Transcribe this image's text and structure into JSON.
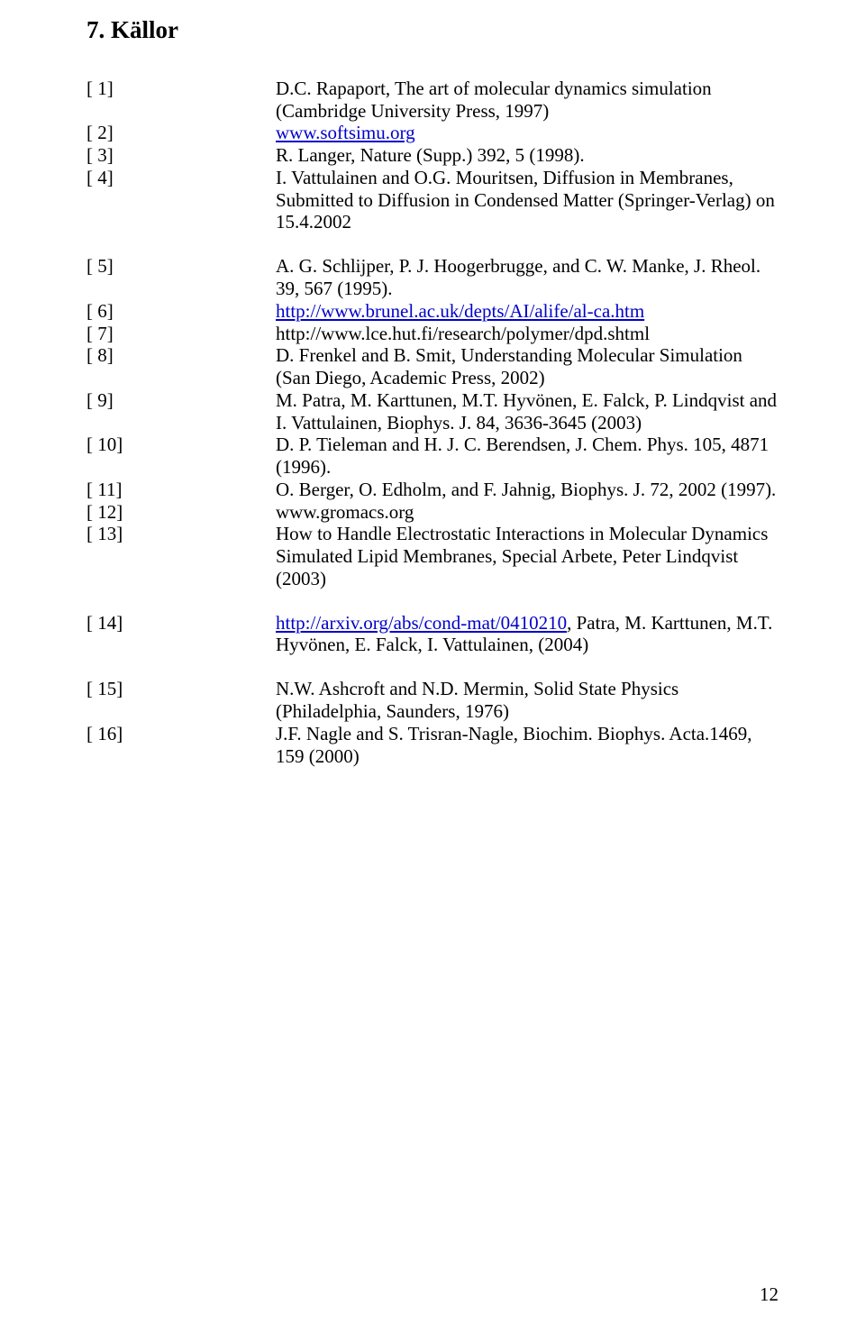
{
  "heading": "7. Källor",
  "page_number": "12",
  "link_color": "#0000cc",
  "refs": [
    {
      "key": "[ 1]",
      "parts": [
        {
          "text": "D.C. Rapaport, The art of molecular dynamics simulation (Cambridge University Press, 1997)"
        }
      ]
    },
    {
      "key": "[ 2]",
      "parts": [
        {
          "text": "www.softsimu.org",
          "link": true
        }
      ]
    },
    {
      "key": "[ 3]",
      "parts": [
        {
          "text": "R. Langer, Nature (Supp.) 392, 5 (1998)."
        }
      ]
    },
    {
      "key": "[ 4]",
      "parts": [
        {
          "text": "I. Vattulainen and O.G. Mouritsen, Diffusion in Membranes, Submitted to Diffusion in Condensed Matter (Springer-Verlag) on 15.4.2002"
        }
      ]
    },
    {
      "spacer": true
    },
    {
      "key": "[ 5]",
      "parts": [
        {
          "text": "A. G. Schlijper, P. J. Hoogerbrugge, and C. W. Manke, J. Rheol. 39, 567 (1995)."
        }
      ]
    },
    {
      "key": "[ 6]",
      "parts": [
        {
          "text": "http://www.brunel.ac.uk/depts/AI/alife/al-ca.htm",
          "link": true
        }
      ]
    },
    {
      "key": "[ 7]",
      "parts": [
        {
          "text": "http://www.lce.hut.fi/research/polymer/dpd.shtml"
        }
      ]
    },
    {
      "key": "[ 8]",
      "parts": [
        {
          "text": "D. Frenkel and B. Smit, Understanding Molecular Simulation (San Diego, Academic Press, 2002)"
        }
      ]
    },
    {
      "key": "[ 9]",
      "parts": [
        {
          "text": "M. Patra, M. Karttunen, M.T. Hyvönen, E. Falck, P. Lindqvist and I. Vattulainen, Biophys. J. 84, 3636-3645 (2003)"
        }
      ]
    },
    {
      "key": "[ 10]",
      "parts": [
        {
          "text": "D. P. Tieleman and H. J. C. Berendsen, J. Chem. Phys. 105, 4871 (1996)."
        }
      ]
    },
    {
      "key": "[ 11]",
      "parts": [
        {
          "text": "O. Berger, O. Edholm, and F. Jahnig, Biophys. J. 72, 2002 (1997)."
        }
      ]
    },
    {
      "key": "[ 12]",
      "parts": [
        {
          "text": "www.gromacs.org"
        }
      ]
    },
    {
      "key": "[ 13]",
      "parts": [
        {
          "text": "How to Handle Electrostatic Interactions in Molecular Dynamics Simulated Lipid Membranes, Special Arbete, Peter Lindqvist (2003)"
        }
      ]
    },
    {
      "spacer": true
    },
    {
      "key": "[ 14]",
      "parts": [
        {
          "text": "http://arxiv.org/abs/cond-mat/0410210",
          "link": true
        },
        {
          "text": ", Patra, M. Karttunen, M.T. Hyvönen, E. Falck, I. Vattulainen, (2004)"
        }
      ]
    },
    {
      "spacer": true
    },
    {
      "key": "[ 15]",
      "parts": [
        {
          "text": "N.W. Ashcroft and N.D. Mermin, Solid State Physics (Philadelphia, Saunders, 1976)"
        }
      ]
    },
    {
      "key": "[ 16]",
      "parts": [
        {
          "text": "J.F. Nagle and S. Trisran-Nagle, Biochim. Biophys. Acta.1469, 159 (2000)"
        }
      ]
    }
  ]
}
